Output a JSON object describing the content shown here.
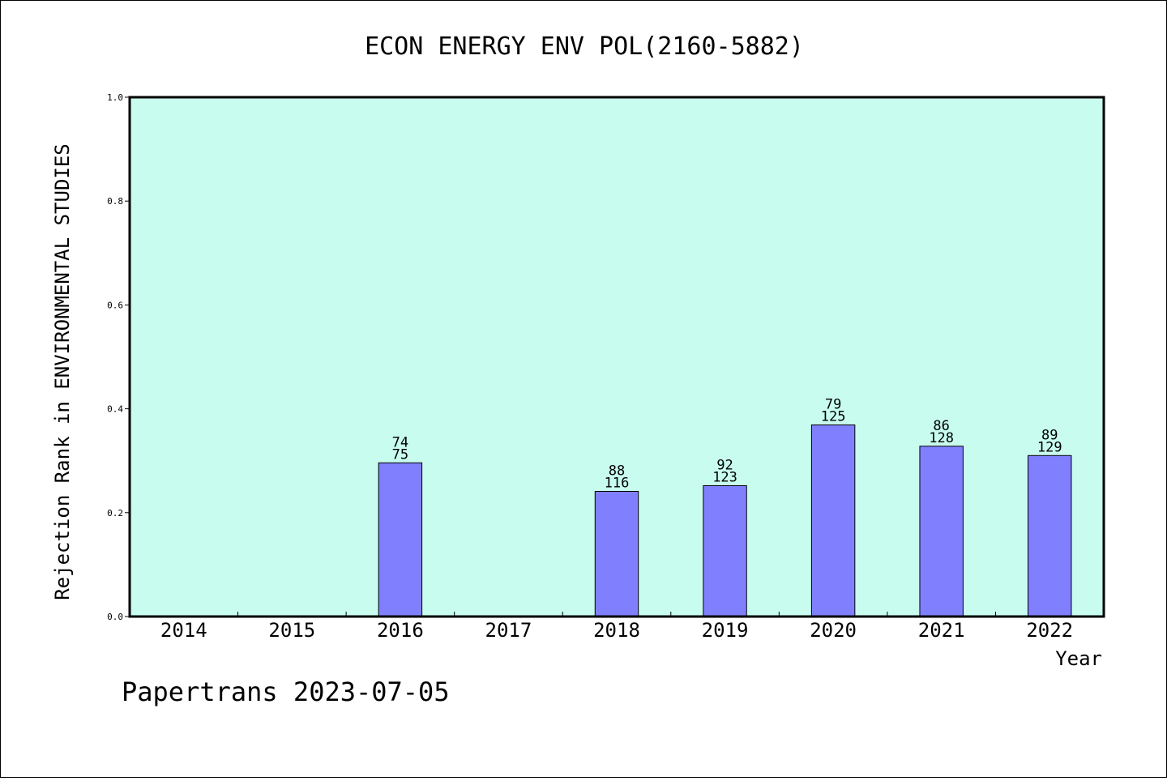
{
  "chart_data": {
    "type": "bar",
    "title": "ECON ENERGY ENV POL(2160-5882)",
    "xlabel": "Year",
    "ylabel": "Rejection Rank in ENVIRONMENTAL STUDIES",
    "ylim": [
      0,
      1.0
    ],
    "yticks": [
      "0.0",
      "0.2",
      "0.4",
      "0.6",
      "0.8",
      "1.0"
    ],
    "categories": [
      "2014",
      "2015",
      "2016",
      "2017",
      "2018",
      "2019",
      "2020",
      "2021",
      "2022"
    ],
    "values": [
      null,
      null,
      0.296,
      null,
      0.241,
      0.252,
      0.369,
      0.328,
      0.31
    ],
    "labels_top": [
      "",
      "",
      "74",
      "",
      "88",
      "92",
      "79",
      "86",
      "89"
    ],
    "labels_bottom": [
      "",
      "",
      "75",
      "",
      "116",
      "123",
      "125",
      "128",
      "129"
    ],
    "grid": false,
    "legend": "none",
    "colors": {
      "plot_background": "#c8fcee",
      "bar_fill": "#8080ff",
      "bar_stroke": "#000000"
    }
  },
  "footer": {
    "text": "Papertrans 2023-07-05"
  }
}
